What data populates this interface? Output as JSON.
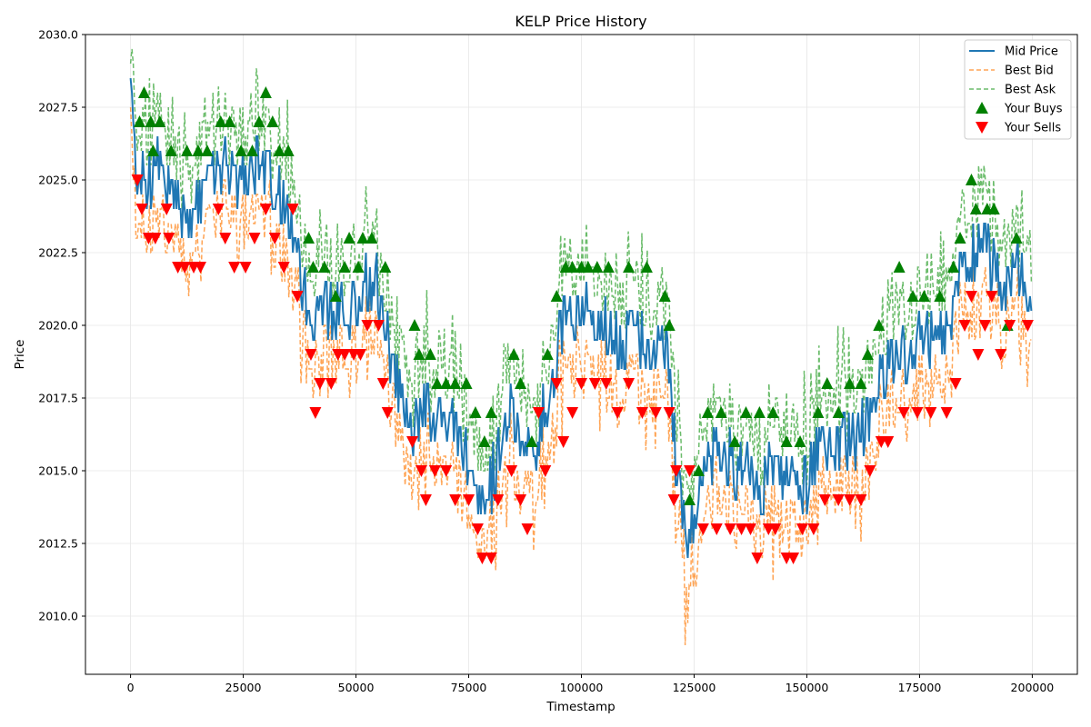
{
  "chart_data": {
    "type": "line",
    "title": "KELP Price History",
    "xlabel": "Timestamp",
    "ylabel": "Price",
    "xlim": [
      -10000,
      210000
    ],
    "ylim": [
      2008,
      2030
    ],
    "x_ticks": [
      0,
      25000,
      50000,
      75000,
      100000,
      125000,
      150000,
      175000,
      200000
    ],
    "x_tick_labels": [
      "0",
      "25000",
      "50000",
      "75000",
      "100000",
      "125000",
      "150000",
      "175000",
      "200000"
    ],
    "y_ticks": [
      2010.0,
      2012.5,
      2015.0,
      2017.5,
      2020.0,
      2022.5,
      2025.0,
      2027.5,
      2030.0
    ],
    "y_tick_labels": [
      "2010.0",
      "2012.5",
      "2015.0",
      "2017.5",
      "2020.0",
      "2022.5",
      "2025.0",
      "2027.5",
      "2030.0"
    ],
    "grid": true,
    "legend_position": "top-right",
    "mid_anchor": {
      "x": [
        0,
        1000,
        3000,
        6000,
        10000,
        13000,
        16000,
        20000,
        24000,
        28000,
        31000,
        34000,
        36000,
        38000,
        41000,
        44000,
        48000,
        52000,
        55000,
        57000,
        60000,
        63000,
        67000,
        71000,
        75000,
        78000,
        81000,
        84000,
        87000,
        90000,
        93000,
        96000,
        100000,
        104000,
        108000,
        112000,
        116000,
        119000,
        121000,
        123000,
        125000,
        128000,
        132000,
        136000,
        140000,
        144000,
        148000,
        152000,
        156000,
        160000,
        164000,
        168000,
        172000,
        176000,
        180000,
        184000,
        187000,
        190000,
        193000,
        196000,
        199000
      ],
      "y": [
        2028.5,
        2025.5,
        2025.0,
        2025.5,
        2024.5,
        2023.5,
        2024.5,
        2025.5,
        2025.0,
        2025.5,
        2025.0,
        2024.5,
        2023.5,
        2021.5,
        2020.0,
        2020.5,
        2020.5,
        2021.5,
        2021.5,
        2019.5,
        2017.5,
        2016.5,
        2017.0,
        2016.5,
        2015.5,
        2014.0,
        2015.0,
        2017.0,
        2016.5,
        2016.0,
        2017.5,
        2020.0,
        2020.5,
        2020.0,
        2019.5,
        2019.5,
        2019.5,
        2019.0,
        2015.5,
        2012.5,
        2013.0,
        2015.5,
        2015.5,
        2015.0,
        2014.5,
        2015.0,
        2014.0,
        2015.5,
        2016.0,
        2016.0,
        2017.0,
        2018.5,
        2019.0,
        2019.5,
        2019.5,
        2021.5,
        2022.5,
        2022.5,
        2021.0,
        2022.0,
        2021.0
      ]
    },
    "series": [
      {
        "name": "Mid Price",
        "color": "#1f77b4",
        "style": "solid"
      },
      {
        "name": "Best Bid",
        "color": "#ff7f0e",
        "style": "dashed"
      },
      {
        "name": "Best Ask",
        "color": "#2ca02c",
        "style": "dashed"
      }
    ],
    "markers": [
      {
        "name": "Your Buys",
        "color": "#008000",
        "shape": "triangle-up"
      },
      {
        "name": "Your Sells",
        "color": "#ff0000",
        "shape": "triangle-down"
      }
    ],
    "trades": {
      "buys": [
        [
          3000,
          2028
        ],
        [
          2000,
          2027
        ],
        [
          4500,
          2027
        ],
        [
          6500,
          2027
        ],
        [
          5000,
          2026
        ],
        [
          9000,
          2026
        ],
        [
          12500,
          2026
        ],
        [
          15000,
          2026
        ],
        [
          17000,
          2026
        ],
        [
          20000,
          2027
        ],
        [
          22000,
          2027
        ],
        [
          24500,
          2026
        ],
        [
          27000,
          2026
        ],
        [
          28500,
          2027
        ],
        [
          30000,
          2028
        ],
        [
          31500,
          2027
        ],
        [
          33000,
          2026
        ],
        [
          35000,
          2026
        ],
        [
          39500,
          2023
        ],
        [
          40500,
          2022
        ],
        [
          43000,
          2022
        ],
        [
          45500,
          2021
        ],
        [
          47500,
          2022
        ],
        [
          48500,
          2023
        ],
        [
          50500,
          2022
        ],
        [
          51500,
          2023
        ],
        [
          53500,
          2023
        ],
        [
          56500,
          2022
        ],
        [
          63000,
          2020
        ],
        [
          64000,
          2019
        ],
        [
          66500,
          2019
        ],
        [
          68000,
          2018
        ],
        [
          70000,
          2018
        ],
        [
          72000,
          2018
        ],
        [
          74500,
          2018
        ],
        [
          76500,
          2017
        ],
        [
          78500,
          2016
        ],
        [
          80000,
          2017
        ],
        [
          85000,
          2019
        ],
        [
          86500,
          2018
        ],
        [
          89000,
          2016
        ],
        [
          92500,
          2019
        ],
        [
          94500,
          2021
        ],
        [
          96500,
          2022
        ],
        [
          98000,
          2022
        ],
        [
          100000,
          2022
        ],
        [
          101500,
          2022
        ],
        [
          103500,
          2022
        ],
        [
          106000,
          2022
        ],
        [
          110500,
          2022
        ],
        [
          114500,
          2022
        ],
        [
          118500,
          2021
        ],
        [
          119500,
          2020
        ],
        [
          124000,
          2014
        ],
        [
          126000,
          2015
        ],
        [
          128000,
          2017
        ],
        [
          131000,
          2017
        ],
        [
          134000,
          2016
        ],
        [
          136500,
          2017
        ],
        [
          139500,
          2017
        ],
        [
          142500,
          2017
        ],
        [
          145500,
          2016
        ],
        [
          148500,
          2016
        ],
        [
          152500,
          2017
        ],
        [
          154500,
          2018
        ],
        [
          157000,
          2017
        ],
        [
          159500,
          2018
        ],
        [
          162000,
          2018
        ],
        [
          163500,
          2019
        ],
        [
          166000,
          2020
        ],
        [
          170500,
          2022
        ],
        [
          173500,
          2021
        ],
        [
          176000,
          2021
        ],
        [
          179500,
          2021
        ],
        [
          182500,
          2022
        ],
        [
          184000,
          2023
        ],
        [
          186500,
          2025
        ],
        [
          187500,
          2024
        ],
        [
          190000,
          2024
        ],
        [
          191500,
          2024
        ],
        [
          194500,
          2020
        ],
        [
          196500,
          2023
        ]
      ],
      "sells": [
        [
          1500,
          2025
        ],
        [
          2500,
          2024
        ],
        [
          4000,
          2023
        ],
        [
          5500,
          2023
        ],
        [
          8000,
          2024
        ],
        [
          8500,
          2023
        ],
        [
          10500,
          2022
        ],
        [
          12000,
          2022
        ],
        [
          14000,
          2022
        ],
        [
          15500,
          2022
        ],
        [
          19500,
          2024
        ],
        [
          21000,
          2023
        ],
        [
          23000,
          2022
        ],
        [
          25500,
          2022
        ],
        [
          27500,
          2023
        ],
        [
          30000,
          2024
        ],
        [
          32000,
          2023
        ],
        [
          34000,
          2022
        ],
        [
          36000,
          2024
        ],
        [
          37000,
          2021
        ],
        [
          40000,
          2019
        ],
        [
          41000,
          2017
        ],
        [
          42000,
          2018
        ],
        [
          44500,
          2018
        ],
        [
          46000,
          2019
        ],
        [
          47500,
          2019
        ],
        [
          49500,
          2019
        ],
        [
          51000,
          2019
        ],
        [
          52500,
          2020
        ],
        [
          55000,
          2020
        ],
        [
          56000,
          2018
        ],
        [
          57000,
          2017
        ],
        [
          62500,
          2016
        ],
        [
          64500,
          2015
        ],
        [
          65500,
          2014
        ],
        [
          67500,
          2015
        ],
        [
          70000,
          2015
        ],
        [
          72000,
          2014
        ],
        [
          75000,
          2014
        ],
        [
          77000,
          2013
        ],
        [
          78000,
          2012
        ],
        [
          80000,
          2012
        ],
        [
          81500,
          2014
        ],
        [
          84500,
          2015
        ],
        [
          86500,
          2014
        ],
        [
          88000,
          2013
        ],
        [
          90500,
          2017
        ],
        [
          92000,
          2015
        ],
        [
          94500,
          2018
        ],
        [
          96000,
          2016
        ],
        [
          98000,
          2017
        ],
        [
          100000,
          2018
        ],
        [
          103000,
          2018
        ],
        [
          105500,
          2018
        ],
        [
          108000,
          2017
        ],
        [
          110500,
          2018
        ],
        [
          113500,
          2017
        ],
        [
          116500,
          2017
        ],
        [
          119500,
          2017
        ],
        [
          120500,
          2014
        ],
        [
          121000,
          2015
        ],
        [
          124000,
          2015
        ],
        [
          127000,
          2013
        ],
        [
          130000,
          2013
        ],
        [
          133000,
          2013
        ],
        [
          135500,
          2013
        ],
        [
          137500,
          2013
        ],
        [
          139000,
          2012
        ],
        [
          141500,
          2013
        ],
        [
          143000,
          2013
        ],
        [
          145500,
          2012
        ],
        [
          147000,
          2012
        ],
        [
          149000,
          2013
        ],
        [
          151500,
          2013
        ],
        [
          154000,
          2014
        ],
        [
          157000,
          2014
        ],
        [
          159500,
          2014
        ],
        [
          162000,
          2014
        ],
        [
          164000,
          2015
        ],
        [
          166500,
          2016
        ],
        [
          168000,
          2016
        ],
        [
          171500,
          2017
        ],
        [
          174500,
          2017
        ],
        [
          177500,
          2017
        ],
        [
          181000,
          2017
        ],
        [
          183000,
          2018
        ],
        [
          185000,
          2020
        ],
        [
          186500,
          2021
        ],
        [
          188000,
          2019
        ],
        [
          189500,
          2020
        ],
        [
          191000,
          2021
        ],
        [
          193000,
          2019
        ],
        [
          195000,
          2020
        ],
        [
          199000,
          2020
        ]
      ]
    }
  }
}
